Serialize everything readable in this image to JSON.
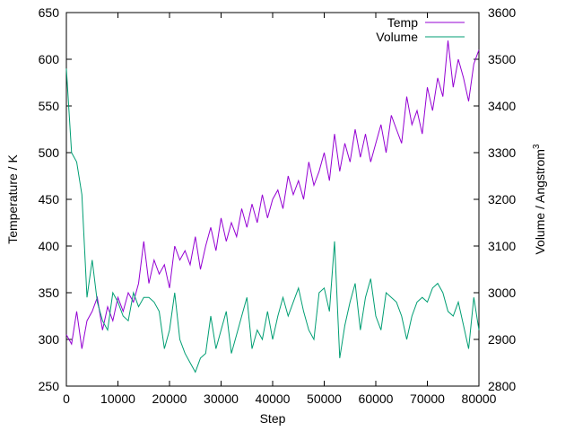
{
  "chart_data": {
    "type": "line",
    "title": "",
    "xlabel": "Step",
    "ylabel": "Temperature / K",
    "y2label_base": "Volume / Angstrom",
    "y2label_sup": "3",
    "xlim": [
      0,
      80000
    ],
    "ylim": [
      250,
      650
    ],
    "y2lim": [
      2800,
      3600
    ],
    "xticks": [
      0,
      10000,
      20000,
      30000,
      40000,
      50000,
      60000,
      70000,
      80000
    ],
    "yticks": [
      250,
      300,
      350,
      400,
      450,
      500,
      550,
      600,
      650
    ],
    "y2ticks": [
      2800,
      2900,
      3000,
      3100,
      3200,
      3300,
      3400,
      3500,
      3600
    ],
    "grid": false,
    "legend_position": "top-right",
    "series": [
      {
        "name": "Temp",
        "axis": "y",
        "color": "#9400d3",
        "x": [
          0,
          1000,
          2000,
          3000,
          4000,
          5000,
          6000,
          7000,
          8000,
          9000,
          10000,
          11000,
          12000,
          13000,
          14000,
          15000,
          16000,
          17000,
          18000,
          19000,
          20000,
          21000,
          22000,
          23000,
          24000,
          25000,
          26000,
          27000,
          28000,
          29000,
          30000,
          31000,
          32000,
          33000,
          34000,
          35000,
          36000,
          37000,
          38000,
          39000,
          40000,
          41000,
          42000,
          43000,
          44000,
          45000,
          46000,
          47000,
          48000,
          49000,
          50000,
          51000,
          52000,
          53000,
          54000,
          55000,
          56000,
          57000,
          58000,
          59000,
          60000,
          61000,
          62000,
          63000,
          64000,
          65000,
          66000,
          67000,
          68000,
          69000,
          70000,
          71000,
          72000,
          73000,
          74000,
          75000,
          76000,
          77000,
          78000,
          79000,
          80000
        ],
        "values": [
          305,
          295,
          330,
          290,
          320,
          330,
          345,
          310,
          335,
          320,
          345,
          330,
          350,
          340,
          360,
          405,
          360,
          385,
          370,
          380,
          355,
          400,
          385,
          395,
          380,
          410,
          375,
          400,
          420,
          395,
          430,
          405,
          425,
          410,
          440,
          420,
          445,
          425,
          455,
          430,
          450,
          460,
          440,
          475,
          455,
          470,
          450,
          490,
          465,
          480,
          500,
          470,
          520,
          480,
          510,
          490,
          525,
          495,
          520,
          490,
          510,
          530,
          500,
          540,
          525,
          510,
          560,
          530,
          545,
          520,
          570,
          545,
          580,
          560,
          620,
          570,
          600,
          580,
          555,
          595,
          610
        ]
      },
      {
        "name": "Volume",
        "axis": "y2",
        "color": "#009e73",
        "x": [
          0,
          1000,
          2000,
          3000,
          4000,
          5000,
          6000,
          7000,
          8000,
          9000,
          10000,
          11000,
          12000,
          13000,
          14000,
          15000,
          16000,
          17000,
          18000,
          19000,
          20000,
          21000,
          22000,
          23000,
          24000,
          25000,
          26000,
          27000,
          28000,
          29000,
          30000,
          31000,
          32000,
          33000,
          34000,
          35000,
          36000,
          37000,
          38000,
          39000,
          40000,
          41000,
          42000,
          43000,
          44000,
          45000,
          46000,
          47000,
          48000,
          49000,
          50000,
          51000,
          52000,
          53000,
          54000,
          55000,
          56000,
          57000,
          58000,
          59000,
          60000,
          61000,
          62000,
          63000,
          64000,
          65000,
          66000,
          67000,
          68000,
          69000,
          70000,
          71000,
          72000,
          73000,
          74000,
          75000,
          76000,
          77000,
          78000,
          79000,
          80000
        ],
        "values": [
          3480,
          3300,
          3280,
          3210,
          2990,
          3070,
          2980,
          2940,
          2920,
          3000,
          2980,
          2950,
          2940,
          3000,
          2970,
          2990,
          2990,
          2980,
          2960,
          2880,
          2920,
          3000,
          2900,
          2870,
          2850,
          2830,
          2860,
          2870,
          2950,
          2880,
          2920,
          2960,
          2870,
          2910,
          2950,
          2990,
          2880,
          2920,
          2900,
          2960,
          2900,
          2950,
          2990,
          2950,
          2980,
          3010,
          2960,
          2920,
          2900,
          3000,
          3010,
          2960,
          3110,
          2860,
          2930,
          2980,
          3020,
          2920,
          2990,
          3030,
          2950,
          2920,
          3000,
          2990,
          2980,
          2950,
          2900,
          2950,
          2980,
          2990,
          2980,
          3010,
          3020,
          3000,
          2960,
          2950,
          2980,
          2930,
          2880,
          2990,
          2920
        ]
      }
    ]
  }
}
